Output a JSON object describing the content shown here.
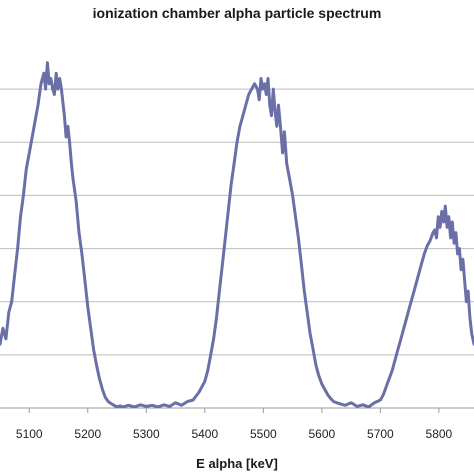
{
  "chart_data": {
    "type": "line",
    "title": "ionization chamber alpha particle spectrum",
    "xlabel": "E alpha [keV]",
    "ylabel": "",
    "xlim": [
      5050,
      5860
    ],
    "ylim": [
      0,
      7
    ],
    "x_ticks": [
      5100,
      5200,
      5300,
      5400,
      5500,
      5600,
      5700,
      5800
    ],
    "y_gridlines": [
      1,
      2,
      3,
      4,
      5,
      6
    ],
    "grid": true,
    "legend": "none",
    "series": [
      {
        "color": "#6a6fa8",
        "x": [
          5050,
          5055,
          5060,
          5065,
          5070,
          5075,
          5080,
          5085,
          5090,
          5095,
          5100,
          5105,
          5110,
          5115,
          5120,
          5125,
          5128,
          5131,
          5134,
          5137,
          5140,
          5143,
          5146,
          5149,
          5152,
          5155,
          5158,
          5160,
          5163,
          5166,
          5169,
          5172,
          5175,
          5180,
          5185,
          5190,
          5195,
          5200,
          5205,
          5210,
          5215,
          5220,
          5225,
          5230,
          5235,
          5240,
          5245,
          5250,
          5255,
          5260,
          5270,
          5280,
          5290,
          5300,
          5310,
          5320,
          5330,
          5340,
          5350,
          5360,
          5370,
          5380,
          5390,
          5400,
          5405,
          5410,
          5415,
          5420,
          5425,
          5430,
          5435,
          5440,
          5445,
          5450,
          5455,
          5460,
          5465,
          5470,
          5475,
          5480,
          5485,
          5490,
          5493,
          5496,
          5499,
          5502,
          5505,
          5508,
          5511,
          5514,
          5517,
          5520,
          5523,
          5526,
          5530,
          5533,
          5536,
          5540,
          5545,
          5550,
          5555,
          5560,
          5565,
          5570,
          5575,
          5580,
          5585,
          5590,
          5595,
          5600,
          5605,
          5610,
          5615,
          5620,
          5630,
          5640,
          5650,
          5660,
          5670,
          5680,
          5690,
          5700,
          5705,
          5710,
          5715,
          5720,
          5725,
          5730,
          5735,
          5740,
          5745,
          5750,
          5755,
          5760,
          5765,
          5770,
          5775,
          5780,
          5785,
          5790,
          5793,
          5796,
          5799,
          5802,
          5805,
          5808,
          5811,
          5814,
          5817,
          5820,
          5823,
          5826,
          5829,
          5832,
          5835,
          5838,
          5841,
          5844,
          5847,
          5850,
          5853,
          5856,
          5860
        ],
        "y": [
          1.2,
          1.5,
          1.3,
          1.8,
          2.0,
          2.5,
          3.0,
          3.6,
          4.0,
          4.5,
          4.8,
          5.1,
          5.4,
          5.7,
          6.1,
          6.3,
          6.0,
          6.5,
          6.1,
          6.2,
          6.0,
          5.9,
          6.3,
          6.0,
          6.2,
          6.0,
          5.7,
          5.5,
          5.1,
          5.3,
          5.0,
          4.6,
          4.3,
          3.9,
          3.3,
          2.9,
          2.4,
          1.9,
          1.5,
          1.1,
          0.8,
          0.55,
          0.35,
          0.2,
          0.12,
          0.08,
          0.05,
          0.02,
          0.04,
          0.02,
          0.05,
          0.02,
          0.06,
          0.03,
          0.05,
          0.02,
          0.06,
          0.03,
          0.1,
          0.05,
          0.12,
          0.15,
          0.3,
          0.5,
          0.7,
          1.0,
          1.3,
          1.7,
          2.2,
          2.7,
          3.2,
          3.7,
          4.2,
          4.6,
          5.0,
          5.3,
          5.5,
          5.7,
          5.9,
          6.0,
          6.1,
          6.0,
          5.8,
          6.2,
          6.0,
          6.1,
          5.9,
          6.2,
          5.7,
          5.5,
          6.0,
          5.6,
          5.3,
          5.7,
          5.2,
          4.8,
          5.2,
          4.6,
          4.3,
          4.0,
          3.6,
          3.2,
          2.7,
          2.2,
          1.8,
          1.4,
          1.1,
          0.8,
          0.6,
          0.45,
          0.35,
          0.25,
          0.18,
          0.12,
          0.08,
          0.05,
          0.1,
          0.03,
          0.06,
          0.02,
          0.1,
          0.15,
          0.25,
          0.4,
          0.55,
          0.7,
          0.9,
          1.1,
          1.3,
          1.5,
          1.7,
          1.9,
          2.1,
          2.3,
          2.5,
          2.7,
          2.9,
          3.05,
          3.15,
          3.3,
          3.35,
          3.2,
          3.6,
          3.4,
          3.7,
          3.5,
          3.8,
          3.4,
          3.6,
          3.2,
          3.5,
          3.1,
          3.3,
          2.9,
          3.0,
          2.6,
          2.8,
          2.4,
          2.0,
          2.2,
          1.7,
          1.4,
          1.2
        ]
      }
    ]
  }
}
